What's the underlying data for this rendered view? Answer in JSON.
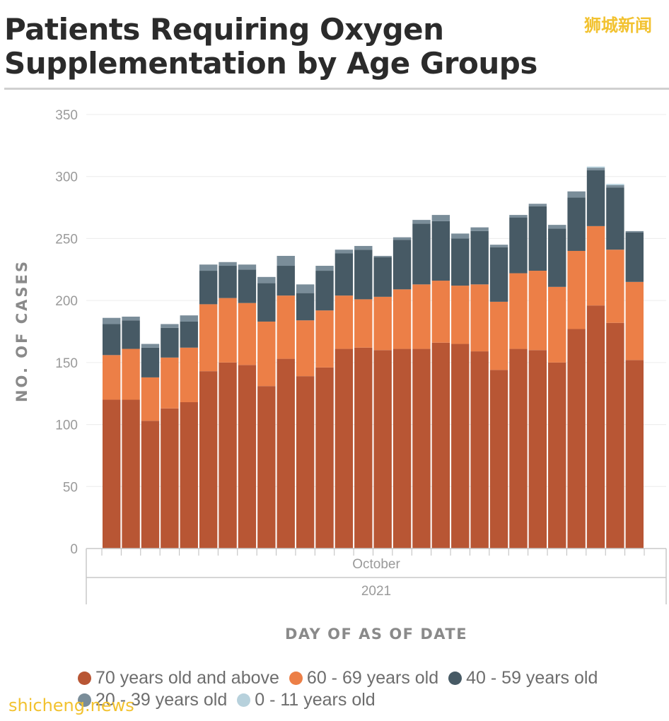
{
  "header": {
    "title_line1": "Patients Requiring Oxygen",
    "title_line2": "Supplementation by Age Groups",
    "watermark_top": "狮城新闻",
    "watermark_bottom": "shicheng.news"
  },
  "colors": {
    "70_plus": "#b85634",
    "60_69": "#ec7f47",
    "40_59": "#475a65",
    "20_39": "#7a8d99",
    "0_11": "#b7d1dc"
  },
  "chart_data": {
    "type": "bar",
    "stacked": true,
    "title": "Patients Requiring Oxygen Supplementation by Age Groups",
    "xlabel": "DAY OF AS OF DATE",
    "ylabel": "NO. OF CASES",
    "ylim": [
      0,
      350
    ],
    "yticks": [
      0,
      50,
      100,
      150,
      200,
      250,
      300,
      350
    ],
    "x_group_month": "October",
    "x_group_year": "2021",
    "grid": true,
    "legend_position": "bottom",
    "series": [
      {
        "name": "70 years old and above",
        "key": "70_plus",
        "values": [
          120,
          120,
          103,
          113,
          118,
          143,
          150,
          148,
          131,
          153,
          139,
          146,
          161,
          162,
          160,
          161,
          161,
          166,
          165,
          159,
          144,
          161,
          160,
          150,
          177,
          196,
          182,
          152
        ]
      },
      {
        "name": "60 - 69 years old",
        "key": "60_69",
        "values": [
          36,
          41,
          35,
          41,
          44,
          54,
          52,
          50,
          52,
          51,
          45,
          46,
          43,
          39,
          43,
          48,
          52,
          50,
          47,
          54,
          55,
          61,
          64,
          61,
          63,
          64,
          59,
          63
        ]
      },
      {
        "name": "40 - 59 years old",
        "key": "40_59",
        "values": [
          25,
          23,
          24,
          24,
          21,
          27,
          26,
          27,
          31,
          24,
          22,
          32,
          34,
          40,
          32,
          40,
          49,
          48,
          38,
          43,
          44,
          45,
          52,
          47,
          43,
          45,
          50,
          40
        ]
      },
      {
        "name": "20 - 39 years old",
        "key": "20_39",
        "values": [
          5,
          3,
          3,
          3,
          5,
          5,
          3,
          4,
          5,
          8,
          7,
          4,
          3,
          3,
          1,
          2,
          3,
          5,
          4,
          3,
          2,
          2,
          2,
          3,
          5,
          2,
          2,
          1
        ]
      },
      {
        "name": "0 - 11 years old",
        "key": "0_11",
        "values": [
          0,
          0,
          0,
          0,
          0,
          0,
          0,
          0,
          0,
          0,
          0,
          0,
          0,
          0,
          0,
          0,
          0,
          0,
          0,
          0,
          0,
          0,
          0,
          0,
          0,
          1,
          1,
          0
        ]
      }
    ]
  }
}
